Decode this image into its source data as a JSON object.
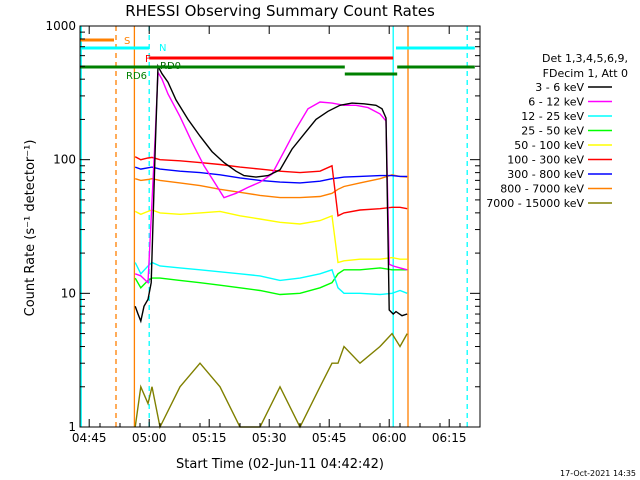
{
  "chart_data": {
    "type": "line",
    "title": "RHESSI Observing Summary Count Rates",
    "xlabel": "Start Time (02-Jun-11 04:42:42)",
    "ylabel": "Count Rate (s⁻¹ detector⁻¹)",
    "x_unit": "minutes after 04:42:42",
    "xlim": [
      0,
      100
    ],
    "ylim": [
      1,
      1000
    ],
    "y_scale": "log",
    "x_ticks": [
      {
        "x": 2.3,
        "label": "04:45"
      },
      {
        "x": 17.3,
        "label": "05:00"
      },
      {
        "x": 32.3,
        "label": "05:15"
      },
      {
        "x": 47.3,
        "label": "05:30"
      },
      {
        "x": 62.3,
        "label": "05:45"
      },
      {
        "x": 77.3,
        "label": "06:00"
      },
      {
        "x": 92.3,
        "label": "06:15"
      }
    ],
    "y_ticks": [
      {
        "y": 1,
        "label": "1"
      },
      {
        "y": 10,
        "label": "10"
      },
      {
        "y": 100,
        "label": "100"
      },
      {
        "y": 1000,
        "label": "1000"
      }
    ],
    "legend": {
      "header": [
        "Det 1,3,4,5,6,9,",
        "FDecim 1, Att 0"
      ],
      "placement": "right"
    },
    "series": [
      {
        "name": "3 - 6 keV",
        "color": "#000000",
        "x": [
          13.8,
          14.5,
          15.2,
          16.0,
          17.0,
          17.8,
          18.8,
          19.5,
          20.5,
          22,
          24,
          27,
          30,
          33,
          36,
          39,
          41,
          44,
          47,
          50,
          53,
          56,
          59,
          62,
          65,
          68,
          71,
          74,
          75.5,
          76.5,
          77.3,
          78.3,
          79,
          80.5,
          81.8
        ],
        "y": [
          8,
          7,
          6.2,
          8,
          9,
          12,
          120,
          500,
          440,
          380,
          280,
          200,
          150,
          115,
          95,
          82,
          76,
          74,
          76,
          84,
          120,
          155,
          200,
          230,
          255,
          265,
          262,
          255,
          240,
          205,
          7.5,
          7,
          7.3,
          6.8,
          7
        ]
      },
      {
        "name": "6 - 12 keV",
        "color": "#ff00ff",
        "x": [
          13.8,
          15.2,
          17.0,
          18.8,
          19.5,
          20.5,
          22,
          25,
          28,
          31,
          34,
          36,
          39,
          42,
          45,
          48,
          51,
          54,
          57,
          60,
          63,
          66,
          69,
          72,
          75,
          76.5,
          77.3,
          78.3,
          80,
          81.8
        ],
        "y": [
          14,
          13.5,
          12,
          150,
          450,
          400,
          310,
          210,
          135,
          90,
          65,
          52,
          56,
          62,
          68,
          78,
          115,
          170,
          240,
          270,
          265,
          255,
          255,
          245,
          220,
          195,
          16.5,
          16,
          15.5,
          15
        ]
      },
      {
        "name": "12 - 25 keV",
        "color": "#00ffff",
        "x": [
          13.8,
          15.2,
          17.0,
          18.0,
          20,
          25,
          30,
          35,
          40,
          45,
          50,
          55,
          60,
          63,
          64.5,
          66,
          70,
          75,
          78,
          80,
          81.8
        ],
        "y": [
          17,
          14,
          16,
          17,
          16,
          15.5,
          15,
          14.5,
          14,
          13.5,
          12.5,
          13,
          14,
          15,
          11,
          10,
          10,
          9.8,
          10,
          10.5,
          10
        ]
      },
      {
        "name": "25 - 50 keV",
        "color": "#00ff00",
        "x": [
          13.8,
          15.2,
          17.0,
          18.0,
          20,
          25,
          30,
          35,
          40,
          45,
          50,
          55,
          60,
          63,
          64.5,
          66,
          70,
          75,
          78,
          80,
          81.8
        ],
        "y": [
          13,
          11,
          12.5,
          13,
          13,
          12.5,
          12,
          11.5,
          11,
          10.5,
          9.8,
          10,
          11,
          12,
          14,
          15,
          15,
          15.5,
          15,
          15,
          15
        ]
      },
      {
        "name": "50 - 100 keV",
        "color": "#ffff00",
        "x": [
          13.8,
          15.2,
          17.0,
          18.0,
          20,
          25,
          30,
          35,
          40,
          45,
          50,
          55,
          60,
          63,
          64.5,
          66,
          70,
          75,
          78,
          80,
          81.8
        ],
        "y": [
          41,
          39,
          41,
          42,
          40,
          39,
          40,
          41,
          38,
          36,
          34,
          33,
          35,
          38,
          17,
          17.5,
          18,
          18,
          18.5,
          18,
          18
        ]
      },
      {
        "name": "100 - 300 keV",
        "color": "#ff0000",
        "x": [
          13.8,
          15.2,
          17.0,
          18.0,
          20,
          25,
          30,
          35,
          40,
          45,
          50,
          55,
          60,
          63,
          64.5,
          66,
          70,
          75,
          78,
          80,
          81.8
        ],
        "y": [
          105,
          100,
          103,
          104,
          100,
          98,
          95,
          92,
          88,
          85,
          82,
          80,
          82,
          90,
          38,
          40,
          42,
          43,
          44,
          44,
          43
        ]
      },
      {
        "name": "300 - 800 keV",
        "color": "#0000ff",
        "x": [
          13.8,
          15.2,
          17.0,
          18.0,
          20,
          25,
          30,
          35,
          40,
          45,
          50,
          55,
          60,
          63,
          64.5,
          66,
          70,
          75,
          78,
          80,
          81.8
        ],
        "y": [
          88,
          85,
          87,
          88,
          85,
          82,
          80,
          77,
          73,
          70,
          68,
          67,
          69,
          72,
          73,
          74,
          75,
          76,
          76,
          75,
          75
        ]
      },
      {
        "name": "800 - 7000 keV",
        "color": "#ff8000",
        "x": [
          13.8,
          15.2,
          17.0,
          18.0,
          20,
          25,
          30,
          35,
          40,
          45,
          50,
          55,
          60,
          63,
          64.5,
          66,
          70,
          75,
          78,
          80,
          81.8
        ],
        "y": [
          72,
          70,
          71,
          72,
          70,
          67,
          64,
          60,
          57,
          54,
          52,
          52,
          53,
          56,
          60,
          63,
          67,
          72,
          77,
          75,
          74
        ]
      },
      {
        "name": "7000 - 15000 keV",
        "color": "#808000",
        "x": [
          13.8,
          15.2,
          17.0,
          18.0,
          20,
          25,
          30,
          35,
          40,
          45,
          50,
          55,
          60,
          63,
          64.5,
          66,
          70,
          75,
          78,
          80,
          81.8
        ],
        "y": [
          1,
          2,
          1.5,
          2,
          1,
          2,
          3,
          2,
          1,
          1,
          2,
          1,
          2,
          3,
          3,
          4,
          3,
          4,
          5,
          4,
          5
        ]
      }
    ],
    "flag_bars": [
      {
        "label": "S",
        "color": "#ff8000",
        "segments": [
          [
            0,
            8.5
          ]
        ]
      },
      {
        "label": "",
        "color": "#00ffff",
        "segments": [
          [
            0,
            17.3
          ],
          [
            79,
            98.7
          ]
        ]
      },
      {
        "label": "N",
        "color": "#00ffff",
        "segments": []
      },
      {
        "label": "F",
        "color": "#ff0000",
        "segments": [
          [
            17.3,
            78.3
          ]
        ]
      },
      {
        "label": "RD0",
        "color": "#006400",
        "segments": [
          [
            17.9,
            18.3
          ]
        ]
      },
      {
        "label": "RD6",
        "color": "#008000",
        "segments": [
          [
            0,
            66.2
          ],
          [
            79.3,
            98.7
          ]
        ]
      },
      {
        "label": "",
        "color": "#008000",
        "segments": [
          [
            66.2,
            79.3
          ]
        ]
      }
    ],
    "vertical_markers": [
      {
        "x": 0.3,
        "color": "#00ffff",
        "style": "solid"
      },
      {
        "x": 9.0,
        "color": "#ff8000",
        "style": "dashed"
      },
      {
        "x": 13.6,
        "color": "#ff8000",
        "style": "solid"
      },
      {
        "x": 17.3,
        "color": "#00ffff",
        "style": "dashed"
      },
      {
        "x": 78.3,
        "color": "#00ffff",
        "style": "solid"
      },
      {
        "x": 82.0,
        "color": "#ff8000",
        "style": "solid"
      },
      {
        "x": 96.8,
        "color": "#00ffff",
        "style": "dashed"
      }
    ]
  },
  "footer": {
    "timestamp": "17-Oct-2021 14:35"
  }
}
